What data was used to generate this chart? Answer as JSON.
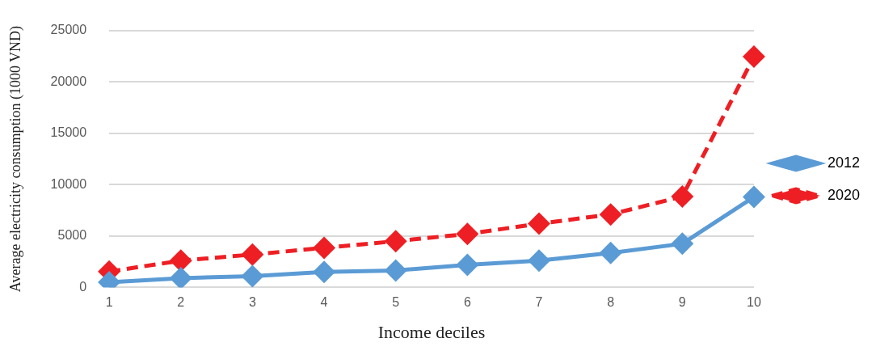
{
  "chart_data": {
    "type": "line",
    "xlabel": "Income deciles",
    "ylabel": "Average electricity consumption (1000 VND)",
    "categories": [
      "1",
      "2",
      "3",
      "4",
      "5",
      "6",
      "7",
      "8",
      "9",
      "10"
    ],
    "series": [
      {
        "name": "2012",
        "color": "#5b9bd5",
        "line_style": "solid",
        "values": [
          500,
          900,
          1100,
          1500,
          1650,
          2200,
          2600,
          3350,
          4250,
          8800
        ]
      },
      {
        "name": "2020",
        "color": "#ee1f24",
        "line_style": "dashed",
        "values": [
          1550,
          2600,
          3200,
          3850,
          4500,
          5200,
          6200,
          7100,
          8850,
          22450
        ]
      }
    ],
    "ylim": [
      0,
      25000
    ],
    "yticks": [
      0,
      5000,
      10000,
      15000,
      20000,
      25000
    ],
    "grid": "y",
    "legend": "right",
    "marker": "diamond"
  }
}
